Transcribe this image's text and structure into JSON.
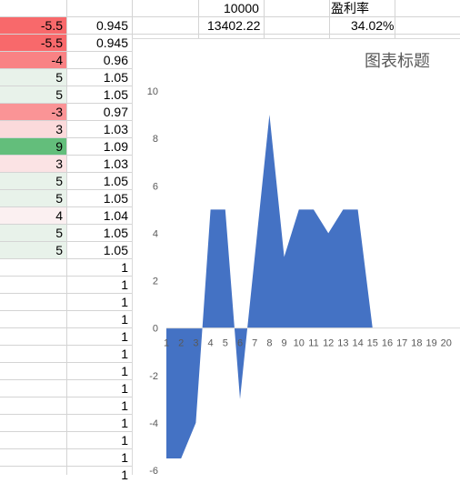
{
  "header": {
    "capital_value": "10000",
    "profit_label": "盈利率",
    "final_value": "13402.22",
    "profit_rate": "34.02%"
  },
  "table": {
    "rows": [
      {
        "a": "-5.5",
        "b": "0.945",
        "color": "#f8696b"
      },
      {
        "a": "-5.5",
        "b": "0.945",
        "color": "#f8696b"
      },
      {
        "a": "-4",
        "b": "0.96",
        "color": "#f98284"
      },
      {
        "a": "5",
        "b": "1.05",
        "color": "#e8f2ea"
      },
      {
        "a": "5",
        "b": "1.05",
        "color": "#e8f2ea"
      },
      {
        "a": "-3",
        "b": "0.97",
        "color": "#fa9496"
      },
      {
        "a": "3",
        "b": "1.03",
        "color": "#fbdadb"
      },
      {
        "a": "9",
        "b": "1.09",
        "color": "#63be7b"
      },
      {
        "a": "3",
        "b": "1.03",
        "color": "#fbe3e4"
      },
      {
        "a": "5",
        "b": "1.05",
        "color": "#e8f2ea"
      },
      {
        "a": "5",
        "b": "1.05",
        "color": "#e8f2ea"
      },
      {
        "a": "4",
        "b": "1.04",
        "color": "#fbf0f1"
      },
      {
        "a": "5",
        "b": "1.05",
        "color": "#e8f2ea"
      },
      {
        "a": "5",
        "b": "1.05",
        "color": "#e8f2ea"
      },
      {
        "a": "",
        "b": "1",
        "color": ""
      },
      {
        "a": "",
        "b": "1",
        "color": ""
      },
      {
        "a": "",
        "b": "1",
        "color": ""
      },
      {
        "a": "",
        "b": "1",
        "color": ""
      },
      {
        "a": "",
        "b": "1",
        "color": ""
      },
      {
        "a": "",
        "b": "1",
        "color": ""
      },
      {
        "a": "",
        "b": "1",
        "color": ""
      },
      {
        "a": "",
        "b": "1",
        "color": ""
      },
      {
        "a": "",
        "b": "1",
        "color": ""
      },
      {
        "a": "",
        "b": "1",
        "color": ""
      },
      {
        "a": "",
        "b": "1",
        "color": ""
      },
      {
        "a": "",
        "b": "1",
        "color": ""
      },
      {
        "a": "",
        "b": "1",
        "color": ""
      }
    ]
  },
  "chart_data": {
    "type": "area",
    "title": "图表标题",
    "x": [
      1,
      2,
      3,
      4,
      5,
      6,
      7,
      8,
      9,
      10,
      11,
      12,
      13,
      14,
      15,
      16,
      17,
      18,
      19,
      20
    ],
    "series": [
      {
        "values": [
          -5.5,
          -5.5,
          -4,
          5,
          5,
          -3,
          3,
          9,
          3,
          5,
          5,
          4,
          5,
          5,
          0,
          0,
          0,
          0,
          0,
          0
        ]
      }
    ],
    "ylim": [
      -6,
      10
    ],
    "yticks": [
      10,
      8,
      6,
      4,
      2,
      0,
      -2,
      -4,
      -6
    ],
    "grid": false,
    "fill_color": "#4472c4"
  }
}
